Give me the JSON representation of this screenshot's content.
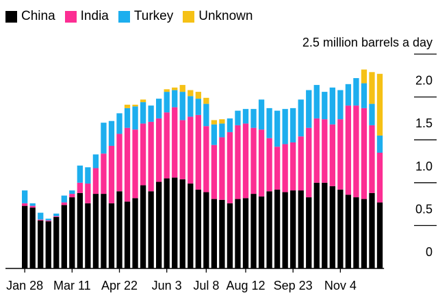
{
  "chart_data": {
    "type": "bar",
    "stacked": true,
    "legend": [
      {
        "name": "China",
        "color": "#000000"
      },
      {
        "name": "India",
        "color": "#fc2e93"
      },
      {
        "name": "Turkey",
        "color": "#1daeee"
      },
      {
        "name": "Unknown",
        "color": "#f5c116"
      }
    ],
    "unit_label": "2.5 million barrels a day",
    "y_ticks": [
      {
        "value": 0,
        "label": "0"
      },
      {
        "value": 0.5,
        "label": "0.5"
      },
      {
        "value": 1.0,
        "label": "1.0"
      },
      {
        "value": 1.5,
        "label": "1.5"
      },
      {
        "value": 2.0,
        "label": "2.0"
      }
    ],
    "ylim": [
      0,
      2.5
    ],
    "x_tick_labels": [
      {
        "label": "Jan 28",
        "index": 0
      },
      {
        "label": "Mar 11",
        "index": 6
      },
      {
        "label": "Apr 22",
        "index": 12
      },
      {
        "label": "Jun 3",
        "index": 18
      },
      {
        "label": "Jul 8",
        "index": 23
      },
      {
        "label": "Aug 12",
        "index": 28
      },
      {
        "label": "Sep 23",
        "index": 34
      },
      {
        "label": "Nov 4",
        "index": 40
      }
    ],
    "series": [
      {
        "name": "China",
        "values": [
          0.73,
          0.71,
          0.56,
          0.55,
          0.6,
          0.74,
          0.83,
          0.88,
          0.76,
          0.87,
          0.87,
          0.76,
          0.9,
          0.78,
          0.82,
          0.97,
          0.9,
          1.01,
          1.05,
          1.06,
          1.04,
          0.99,
          0.92,
          0.89,
          0.81,
          0.8,
          0.76,
          0.81,
          0.82,
          0.87,
          0.84,
          0.9,
          0.92,
          0.89,
          0.91,
          0.91,
          0.83,
          1.0,
          1.0,
          0.96,
          0.92,
          0.86,
          0.83,
          0.81,
          0.88,
          0.77
        ]
      },
      {
        "name": "India",
        "values": [
          0.03,
          0.02,
          0.01,
          0.01,
          0.01,
          0.03,
          0.04,
          0.12,
          0.23,
          0.3,
          0.47,
          0.67,
          0.67,
          0.86,
          0.8,
          0.72,
          0.81,
          0.74,
          0.77,
          0.82,
          0.69,
          0.78,
          0.87,
          0.77,
          0.63,
          0.73,
          0.83,
          0.86,
          0.87,
          0.77,
          0.78,
          0.62,
          0.5,
          0.56,
          0.56,
          0.63,
          0.81,
          0.75,
          0.74,
          0.72,
          0.82,
          1.04,
          1.07,
          1.06,
          0.79,
          0.58
        ]
      },
      {
        "name": "Turkey",
        "values": [
          0.15,
          0.03,
          0.08,
          0.02,
          0.03,
          0.08,
          0.04,
          0.2,
          0.19,
          0.16,
          0.36,
          0.29,
          0.24,
          0.23,
          0.27,
          0.25,
          0.19,
          0.23,
          0.24,
          0.2,
          0.33,
          0.24,
          0.19,
          0.26,
          0.24,
          0.16,
          0.16,
          0.17,
          0.17,
          0.22,
          0.35,
          0.35,
          0.42,
          0.41,
          0.4,
          0.43,
          0.44,
          0.39,
          0.32,
          0.43,
          0.34,
          0.25,
          0.32,
          0.29,
          0.25,
          0.2
        ]
      },
      {
        "name": "Unknown",
        "values": [
          0,
          0,
          0,
          0,
          0,
          0,
          0,
          0,
          0,
          0,
          0,
          0,
          0,
          0.04,
          0.02,
          0.03,
          0,
          0,
          0.03,
          0.03,
          0.08,
          0.07,
          0.08,
          0.07,
          0.05,
          0.05,
          0,
          0,
          0,
          0,
          0,
          0,
          0,
          0,
          0,
          0,
          0,
          0,
          0,
          0,
          0,
          0,
          0,
          0.16,
          0.37,
          0.72
        ]
      }
    ]
  }
}
